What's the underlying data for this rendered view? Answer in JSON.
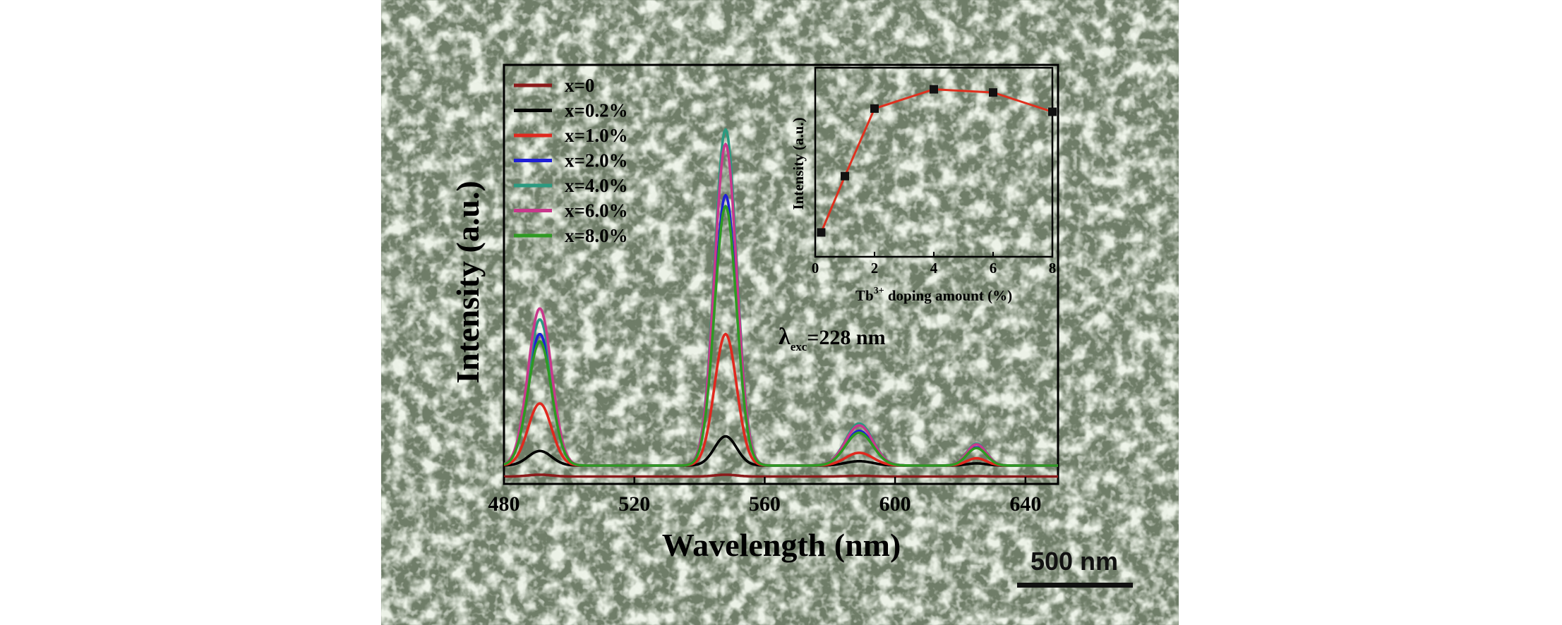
{
  "background": {
    "color_base": "#6f7d68",
    "color_grain": "#d9e3cf"
  },
  "scale_bar": {
    "label": "500 nm",
    "color": "#111111"
  },
  "annotation": {
    "lambda": "λ",
    "subscript": "exc",
    "value": "=228 nm"
  },
  "chart_data": [
    {
      "type": "line",
      "title": "",
      "xlabel": "Wavelength (nm)",
      "ylabel": "Intensity (a.u.)",
      "xlim": [
        480,
        650
      ],
      "ylim": [
        0,
        100
      ],
      "xticks": [
        480,
        520,
        560,
        600,
        640
      ],
      "grid": false,
      "legend_position": "top-left",
      "peak_centers": [
        491,
        548,
        589,
        625
      ],
      "peak_widths": [
        3.6,
        3.4,
        4.2,
        3.0
      ],
      "series": [
        {
          "name": "x=0",
          "color": "#8b1a1a",
          "peaks": [
            0.5,
            0.5,
            0.2,
            0.1
          ],
          "baseline": -3
        },
        {
          "name": "x=0.2%",
          "color": "#000000",
          "peaks": [
            4,
            8,
            1.2,
            0.6
          ],
          "baseline": 0
        },
        {
          "name": "x=1.0%",
          "color": "#e0281e",
          "peaks": [
            17,
            36,
            3.5,
            2
          ],
          "baseline": 0
        },
        {
          "name": "x=2.0%",
          "color": "#1f1fd6",
          "peaks": [
            36,
            74,
            9.5,
            5
          ],
          "baseline": 0
        },
        {
          "name": "x=4.0%",
          "color": "#2a9a80",
          "peaks": [
            40,
            92,
            11.5,
            6
          ],
          "baseline": 0
        },
        {
          "name": "x=6.0%",
          "color": "#c8388c",
          "peaks": [
            43,
            88,
            11,
            5.8
          ],
          "baseline": 0
        },
        {
          "name": "x=8.0%",
          "color": "#2e9a22",
          "peaks": [
            34,
            71,
            9,
            4.8
          ],
          "baseline": 0
        }
      ]
    },
    {
      "type": "line",
      "title": "",
      "xlabel_main": "Tb",
      "xlabel_sup": "3+",
      "xlabel_rest": " doping amount (%)",
      "ylabel": "Intensity (a.u.)",
      "xlim": [
        0,
        8
      ],
      "ylim": [
        0,
        100
      ],
      "xticks": [
        0,
        2,
        4,
        6,
        8
      ],
      "color": "#e0301e",
      "x": [
        0.2,
        1,
        2,
        4,
        6,
        8
      ],
      "y": [
        9,
        44,
        86,
        98,
        96,
        84
      ]
    }
  ]
}
